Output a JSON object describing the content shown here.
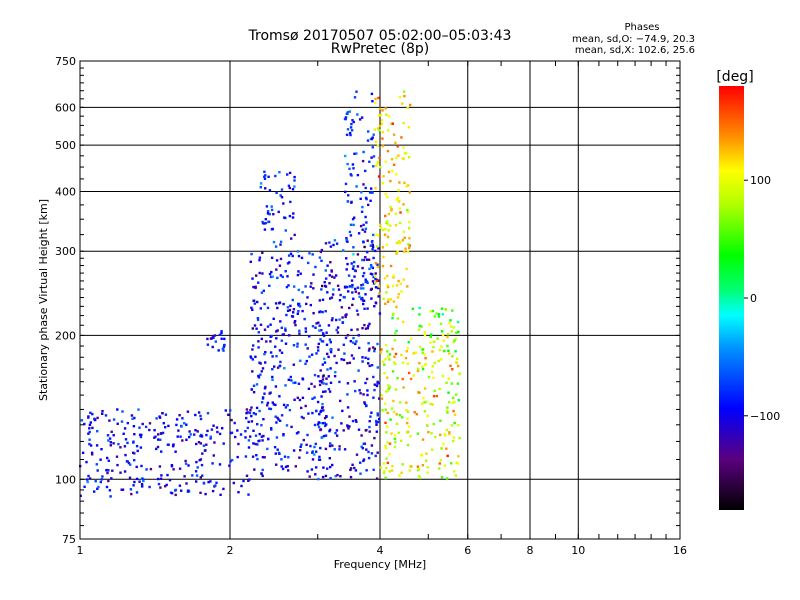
{
  "chart_data": {
    "type": "scatter",
    "title": "Tromsø 20170507 05:02:00–05:03:43",
    "subtitle": "RwPretec (8p)",
    "stats": {
      "heading": "Phases",
      "line_o": "mean, sd,O: −74.9, 20.3",
      "line_x": "mean, sd,X: 102.6, 25.6"
    },
    "xlabel": "Frequency [MHz]",
    "ylabel": "Stationary phase Virtual Height [km]",
    "x_scale": "log",
    "y_scale": "log",
    "xlim": [
      1,
      16
    ],
    "ylim": [
      75,
      750
    ],
    "x_ticks": [
      1,
      2,
      4,
      6,
      8,
      10,
      16
    ],
    "x_tick_labels": [
      "1",
      "2",
      "4",
      "6",
      "8",
      "10",
      "16"
    ],
    "y_ticks": [
      75,
      100,
      200,
      300,
      400,
      500,
      600,
      750
    ],
    "y_tick_labels": [
      "75",
      "100",
      "200",
      "300",
      "400",
      "500",
      "600",
      "750"
    ],
    "grid": true,
    "colorbar": {
      "label": "[deg]",
      "range": [
        -180,
        180
      ],
      "ticks": [
        100,
        0,
        -100
      ],
      "tick_labels": [
        "100",
        "0",
        "−100"
      ]
    },
    "trace_bands": [
      {
        "f_min": 1.0,
        "f_max": 2.2,
        "h_min": 92,
        "h_max": 140,
        "phase_mean": -95,
        "phase_sd": 20
      },
      {
        "f_min": 1.8,
        "f_max": 1.95,
        "h_min": 185,
        "h_max": 205,
        "phase_mean": -90,
        "phase_sd": 15
      },
      {
        "f_min": 2.2,
        "f_max": 3.2,
        "h_min": 100,
        "h_max": 300,
        "phase_mean": -90,
        "phase_sd": 20
      },
      {
        "f_min": 2.3,
        "f_max": 2.7,
        "h_min": 300,
        "h_max": 440,
        "phase_mean": -85,
        "phase_sd": 20
      },
      {
        "f_min": 3.0,
        "f_max": 4.0,
        "h_min": 100,
        "h_max": 320,
        "phase_mean": -100,
        "phase_sd": 25
      },
      {
        "f_min": 3.4,
        "f_max": 3.9,
        "h_min": 250,
        "h_max": 650,
        "phase_mean": -80,
        "phase_sd": 20
      },
      {
        "f_min": 3.9,
        "f_max": 4.6,
        "h_min": 230,
        "h_max": 650,
        "phase_mean": 110,
        "phase_sd": 25
      },
      {
        "f_min": 4.0,
        "f_max": 5.8,
        "h_min": 100,
        "h_max": 200,
        "phase_mean": 95,
        "phase_sd": 30
      },
      {
        "f_min": 4.2,
        "f_max": 5.8,
        "h_min": 200,
        "h_max": 230,
        "phase_mean": 60,
        "phase_sd": 40
      }
    ]
  }
}
